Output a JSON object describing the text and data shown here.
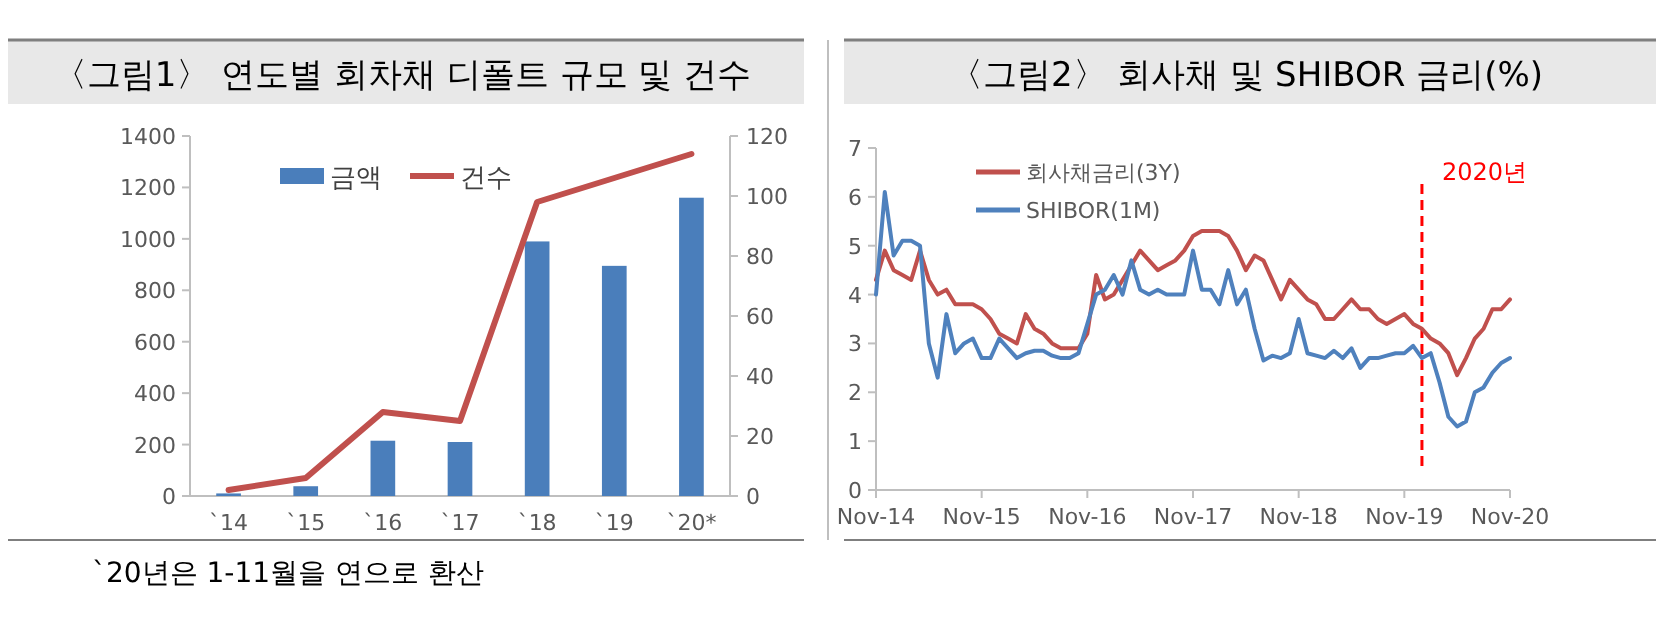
{
  "chart_data": [
    {
      "type": "bar",
      "title": "〈그림1〉 연도별 회차채 디폴트 규모 및 건수",
      "categories": [
        "`14",
        "`15",
        "`16",
        "`17",
        "`18",
        "`19",
        "`20*"
      ],
      "series": [
        {
          "name": "금액",
          "color": "#4a7ebb",
          "values": [
            10,
            38,
            215,
            210,
            990,
            895,
            1160
          ]
        },
        {
          "name": "건수",
          "type": "line",
          "axis": "y2",
          "color": "#c0504d",
          "values": [
            2,
            6,
            28,
            25,
            98,
            106,
            114
          ]
        }
      ],
      "ylim": [
        0,
        1400
      ],
      "yticks": [
        0,
        200,
        400,
        600,
        800,
        1000,
        1200,
        1400
      ],
      "y2lim": [
        0,
        120
      ],
      "y2ticks": [
        0,
        20,
        40,
        60,
        80,
        100,
        120
      ],
      "legend": "top",
      "annotations": [
        "`20년은 1-11월을 연으로 환산"
      ]
    },
    {
      "type": "line",
      "title": "〈그림2〉 회사채 및 SHIBOR 금리(%)",
      "x": [
        "2014-11",
        "2014-12",
        "2015-01",
        "2015-02",
        "2015-03",
        "2015-04",
        "2015-05",
        "2015-06",
        "2015-07",
        "2015-08",
        "2015-09",
        "2015-10",
        "2015-11",
        "2015-12",
        "2016-01",
        "2016-02",
        "2016-03",
        "2016-04",
        "2016-05",
        "2016-06",
        "2016-07",
        "2016-08",
        "2016-09",
        "2016-10",
        "2016-11",
        "2016-12",
        "2017-01",
        "2017-02",
        "2017-03",
        "2017-04",
        "2017-05",
        "2017-06",
        "2017-07",
        "2017-08",
        "2017-09",
        "2017-10",
        "2017-11",
        "2017-12",
        "2018-01",
        "2018-02",
        "2018-03",
        "2018-04",
        "2018-05",
        "2018-06",
        "2018-07",
        "2018-08",
        "2018-09",
        "2018-10",
        "2018-11",
        "2018-12",
        "2019-01",
        "2019-02",
        "2019-03",
        "2019-04",
        "2019-05",
        "2019-06",
        "2019-07",
        "2019-08",
        "2019-09",
        "2019-10",
        "2019-11",
        "2019-12",
        "2020-01",
        "2020-02",
        "2020-03",
        "2020-04",
        "2020-05",
        "2020-06",
        "2020-07",
        "2020-08",
        "2020-09",
        "2020-10",
        "2020-11"
      ],
      "series": [
        {
          "name": "회사채금리(3Y)",
          "color": "#c0504d",
          "values": [
            4.3,
            4.9,
            4.5,
            4.4,
            4.3,
            4.9,
            4.3,
            4.0,
            4.1,
            3.8,
            3.8,
            3.8,
            3.7,
            3.5,
            3.2,
            3.1,
            3.0,
            3.6,
            3.3,
            3.2,
            3.0,
            2.9,
            2.9,
            2.9,
            3.2,
            4.4,
            3.9,
            4.0,
            4.3,
            4.6,
            4.9,
            4.7,
            4.5,
            4.6,
            4.7,
            4.9,
            5.2,
            5.3,
            5.3,
            5.3,
            5.2,
            4.9,
            4.5,
            4.8,
            4.7,
            4.3,
            3.9,
            4.3,
            4.1,
            3.9,
            3.8,
            3.5,
            3.5,
            3.7,
            3.9,
            3.7,
            3.7,
            3.5,
            3.4,
            3.5,
            3.6,
            3.4,
            3.3,
            3.1,
            3.0,
            2.8,
            2.35,
            2.7,
            3.1,
            3.3,
            3.7,
            3.7,
            3.9
          ]
        },
        {
          "name": "SHIBOR(1M)",
          "color": "#4f81bd",
          "values": [
            4.0,
            6.1,
            4.8,
            5.1,
            5.1,
            5.0,
            3.0,
            2.3,
            3.6,
            2.8,
            3.0,
            3.1,
            2.7,
            2.7,
            3.1,
            2.9,
            2.7,
            2.8,
            2.85,
            2.85,
            2.75,
            2.7,
            2.7,
            2.8,
            3.4,
            4.0,
            4.1,
            4.4,
            4.0,
            4.7,
            4.1,
            4.0,
            4.1,
            4.0,
            4.0,
            4.0,
            4.9,
            4.1,
            4.1,
            3.8,
            4.5,
            3.8,
            4.1,
            3.3,
            2.65,
            2.75,
            2.7,
            2.8,
            3.5,
            2.8,
            2.75,
            2.7,
            2.85,
            2.7,
            2.9,
            2.5,
            2.7,
            2.7,
            2.75,
            2.8,
            2.8,
            2.95,
            2.7,
            2.8,
            2.2,
            1.5,
            1.3,
            1.4,
            2.0,
            2.1,
            2.4,
            2.6,
            2.7
          ]
        }
      ],
      "xlim": [
        "2014-11",
        "2020-11"
      ],
      "xticks": [
        {
          "value": "2014-11",
          "label": "Nov-14"
        },
        {
          "value": "2015-11",
          "label": "Nov-15"
        },
        {
          "value": "2016-11",
          "label": "Nov-16"
        },
        {
          "value": "2017-11",
          "label": "Nov-17"
        },
        {
          "value": "2018-11",
          "label": "Nov-18"
        },
        {
          "value": "2019-11",
          "label": "Nov-19"
        },
        {
          "value": "2020-11",
          "label": "Nov-20"
        }
      ],
      "ylim": [
        0,
        7
      ],
      "yticks": [
        0,
        1,
        2,
        3,
        4,
        5,
        6,
        7
      ],
      "ref_lines": [
        {
          "axis": "x",
          "value": "2020-01",
          "label": "2020년",
          "color": "#ff0000",
          "line_style": "dashed"
        }
      ],
      "legend": "top left"
    }
  ]
}
